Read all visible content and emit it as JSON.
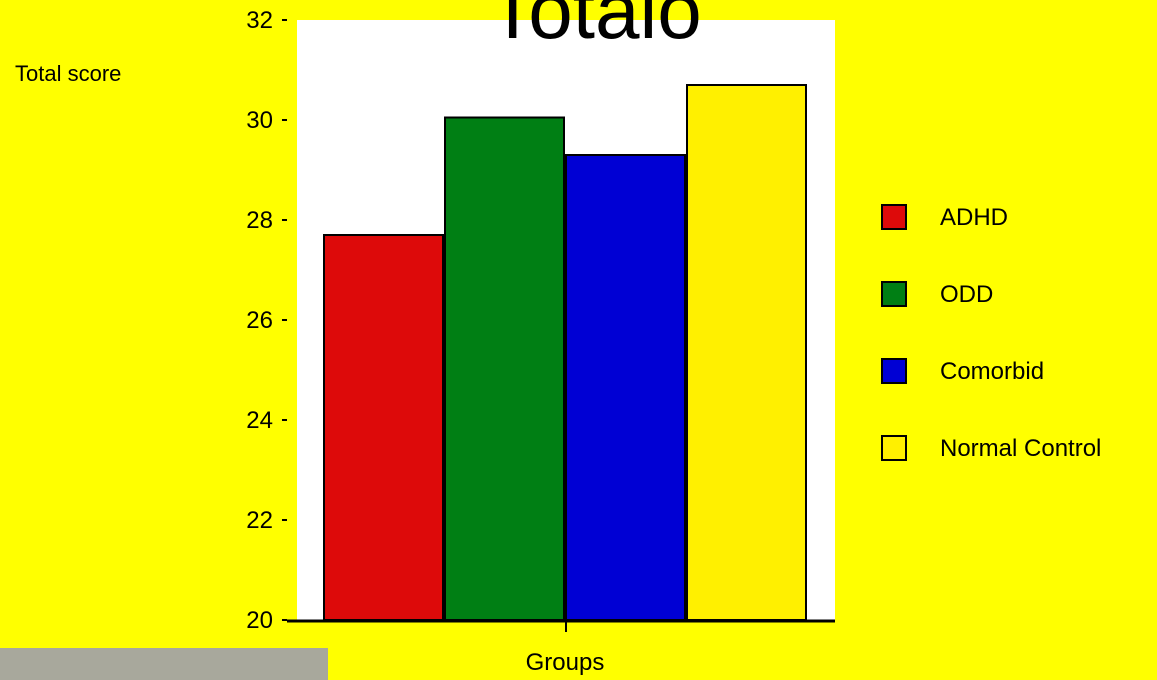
{
  "chart_data": {
    "type": "bar",
    "title": "Totalo",
    "y_label": "Total score",
    "x_label": "Groups",
    "categories": [
      null
    ],
    "series": [
      {
        "name": "ADHD",
        "color": "#dd0a0a",
        "values": [
          27.7
        ]
      },
      {
        "name": "ODD",
        "color": "#007f14",
        "values": [
          30.05
        ]
      },
      {
        "name": "Comorbid",
        "color": "#0000d4",
        "values": [
          29.3
        ]
      },
      {
        "name": "Normal Control",
        "color": "#fff000",
        "values": [
          30.7
        ]
      }
    ],
    "ylim": [
      20,
      32
    ],
    "yticks": [
      20,
      22,
      24,
      26,
      28,
      30,
      32
    ]
  }
}
